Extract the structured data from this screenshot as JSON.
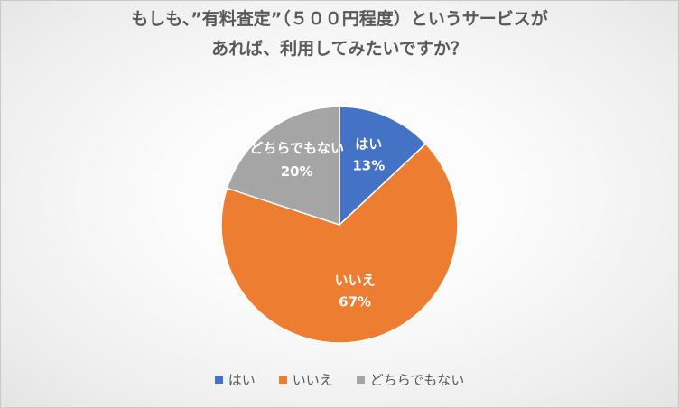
{
  "chart_data": {
    "type": "pie",
    "title_lines": [
      "もしも、”有料査定”（５００円程度）というサービスが",
      "あれば、利用してみたいですか？"
    ],
    "categories": [
      "はい",
      "いいえ",
      "どちらでもない"
    ],
    "values": [
      13,
      67,
      20
    ],
    "value_labels": [
      "13%",
      "67%",
      "20%"
    ],
    "colors": [
      "#4472c4",
      "#ed7d31",
      "#a5a5a5"
    ],
    "legend_position": "bottom"
  }
}
